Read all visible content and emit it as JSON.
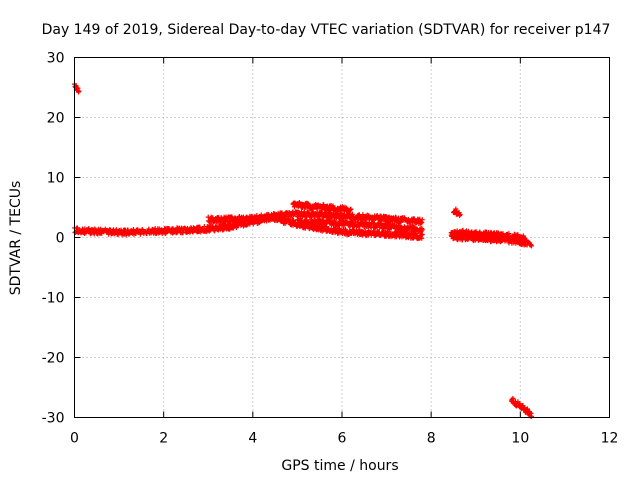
{
  "chart_data": {
    "type": "scatter",
    "title": "Day 149 of 2019, Sidereal Day-to-day VTEC variation (SDTVAR) for receiver p147",
    "xlabel": "GPS time / hours",
    "ylabel": "SDTVAR / TECUs",
    "xlim": [
      0,
      12
    ],
    "ylim": [
      -30,
      30
    ],
    "xticks": [
      0,
      2,
      4,
      6,
      8,
      10,
      12
    ],
    "yticks": [
      -30,
      -20,
      -10,
      0,
      10,
      20,
      30
    ],
    "grid": true,
    "marker": "+",
    "color": "#ff0000",
    "series": [
      {
        "name": "SDTVAR",
        "segments": [
          {
            "x": [
              0.0,
              0.1
            ],
            "y": [
              25.5,
              24.5
            ]
          },
          {
            "x": [
              0.0,
              0.5,
              1.0,
              1.2
            ],
            "y": [
              1.2,
              1.0,
              0.9,
              0.8
            ]
          },
          {
            "x": [
              1.2,
              2.0,
              2.8,
              3.5,
              4.0,
              4.4,
              4.8,
              5.4,
              6.0,
              6.6,
              7.2,
              7.8
            ],
            "y": [
              0.9,
              1.1,
              1.3,
              1.8,
              2.6,
              3.3,
              2.6,
              1.6,
              1.0,
              0.7,
              0.5,
              0.2
            ]
          },
          {
            "x": [
              3.0,
              3.5,
              4.0,
              4.5,
              5.0,
              5.5,
              6.0,
              6.5,
              7.0,
              7.5,
              7.8
            ],
            "y": [
              3.0,
              3.0,
              3.2,
              3.6,
              3.9,
              3.8,
              3.6,
              3.4,
              3.1,
              2.8,
              2.7
            ]
          },
          {
            "x": [
              4.9,
              5.3,
              5.8,
              6.2
            ],
            "y": [
              5.5,
              5.2,
              4.9,
              4.6
            ]
          },
          {
            "x": [
              5.0,
              5.6,
              6.2,
              6.8,
              7.4,
              7.8
            ],
            "y": [
              2.8,
              2.6,
              2.3,
              2.0,
              1.6,
              1.3
            ]
          },
          {
            "x": [
              8.5,
              8.65
            ],
            "y": [
              4.5,
              4.0
            ]
          },
          {
            "x": [
              8.45,
              8.8,
              9.2,
              9.6,
              10.0,
              10.25
            ],
            "y": [
              0.1,
              0.0,
              -0.2,
              -0.4,
              -0.7,
              -1.2
            ]
          },
          {
            "x": [
              8.45,
              9.0,
              9.6,
              10.1
            ],
            "y": [
              0.9,
              0.6,
              0.3,
              0.0
            ]
          },
          {
            "x": [
              9.8,
              10.25
            ],
            "y": [
              -27.0,
              -29.5
            ]
          }
        ]
      }
    ]
  }
}
